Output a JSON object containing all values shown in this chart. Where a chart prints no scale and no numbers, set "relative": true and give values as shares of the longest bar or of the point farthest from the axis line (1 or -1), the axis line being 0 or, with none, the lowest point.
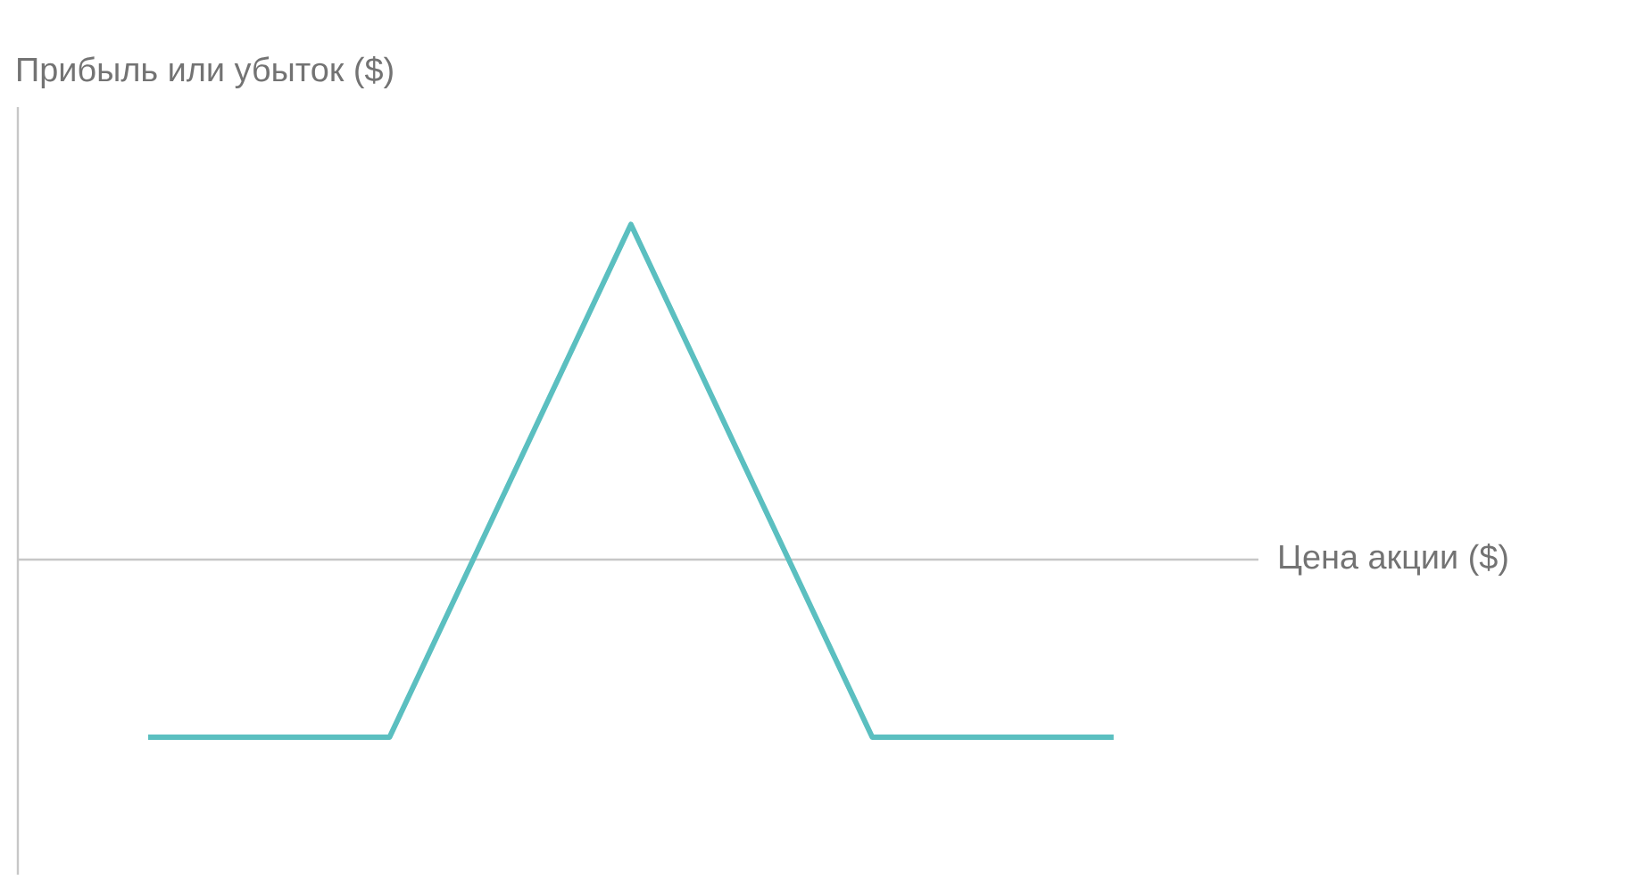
{
  "chart_data": {
    "type": "line",
    "relative": true,
    "xlabel": "Цена акции ($)",
    "ylabel": "Прибыль или убыток ($)",
    "categories": [
      null,
      null,
      null,
      null,
      null
    ],
    "series": [
      {
        "color": "#5bbfc0",
        "values": [
          -0.53,
          -0.53,
          1,
          -0.53,
          -0.53
        ]
      }
    ],
    "marker": "none",
    "line_style": "solid"
  }
}
